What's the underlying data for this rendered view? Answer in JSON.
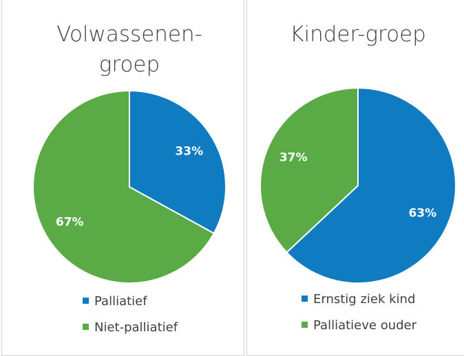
{
  "chart_data": [
    {
      "type": "pie",
      "title": "Volwassenen-groep",
      "categories": [
        "Palliatief",
        "Niet-palliatief"
      ],
      "values": [
        33,
        67
      ],
      "value_labels": [
        "33%",
        "67%"
      ],
      "colors": [
        "#0f7bc1",
        "#5aab46"
      ]
    },
    {
      "type": "pie",
      "title": "Kinder-groep",
      "categories": [
        "Ernstig ziek kind",
        "Palliatieve ouder"
      ],
      "values": [
        63,
        37
      ],
      "value_labels": [
        "63%",
        "37%"
      ],
      "colors": [
        "#0f7bc1",
        "#5aab46"
      ]
    }
  ]
}
